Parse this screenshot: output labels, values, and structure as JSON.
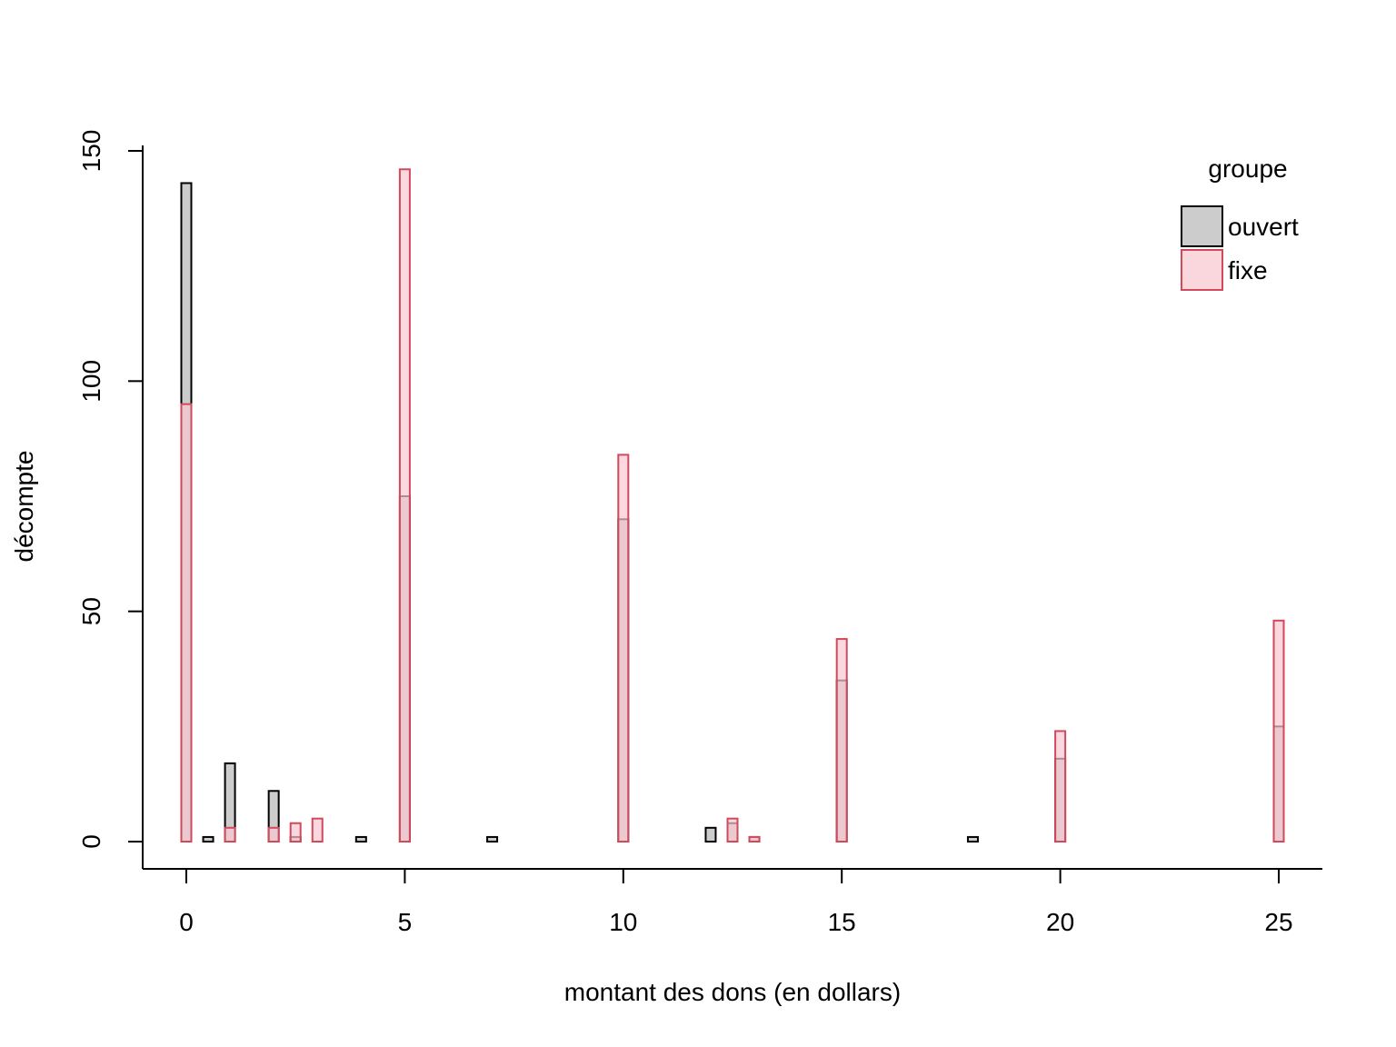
{
  "chart_data": {
    "type": "bar",
    "title": "",
    "xlabel": "montant des dons (en dollars)",
    "ylabel": "décompte",
    "xlim": [
      0,
      25
    ],
    "ylim": [
      0,
      150
    ],
    "xticks": [
      "0",
      "5",
      "10",
      "15",
      "20",
      "25"
    ],
    "yticks": [
      "0",
      "50",
      "100",
      "150"
    ],
    "grid": false,
    "legend": {
      "title": "groupe",
      "position": "top-right"
    },
    "series": [
      {
        "name": "ouvert",
        "color": "#000000",
        "fill": "#cccccc",
        "points": [
          {
            "x": 0,
            "y": 143
          },
          {
            "x": 0.5,
            "y": 1
          },
          {
            "x": 1,
            "y": 17
          },
          {
            "x": 2,
            "y": 11
          },
          {
            "x": 2.5,
            "y": 1
          },
          {
            "x": 4,
            "y": 1
          },
          {
            "x": 5,
            "y": 75
          },
          {
            "x": 7,
            "y": 1
          },
          {
            "x": 10,
            "y": 70
          },
          {
            "x": 12,
            "y": 3
          },
          {
            "x": 12.5,
            "y": 4
          },
          {
            "x": 13,
            "y": 1
          },
          {
            "x": 15,
            "y": 35
          },
          {
            "x": 18,
            "y": 1
          },
          {
            "x": 20,
            "y": 18
          },
          {
            "x": 25,
            "y": 25
          }
        ]
      },
      {
        "name": "fixe",
        "color": "#d1495b",
        "fill": "#f7c9d1",
        "points": [
          {
            "x": 0,
            "y": 95
          },
          {
            "x": 1,
            "y": 3
          },
          {
            "x": 2,
            "y": 3
          },
          {
            "x": 2.5,
            "y": 4
          },
          {
            "x": 3,
            "y": 5
          },
          {
            "x": 5,
            "y": 146
          },
          {
            "x": 10,
            "y": 84
          },
          {
            "x": 12.5,
            "y": 5
          },
          {
            "x": 13,
            "y": 1
          },
          {
            "x": 15,
            "y": 44
          },
          {
            "x": 20,
            "y": 24
          },
          {
            "x": 25,
            "y": 48
          }
        ]
      }
    ]
  }
}
